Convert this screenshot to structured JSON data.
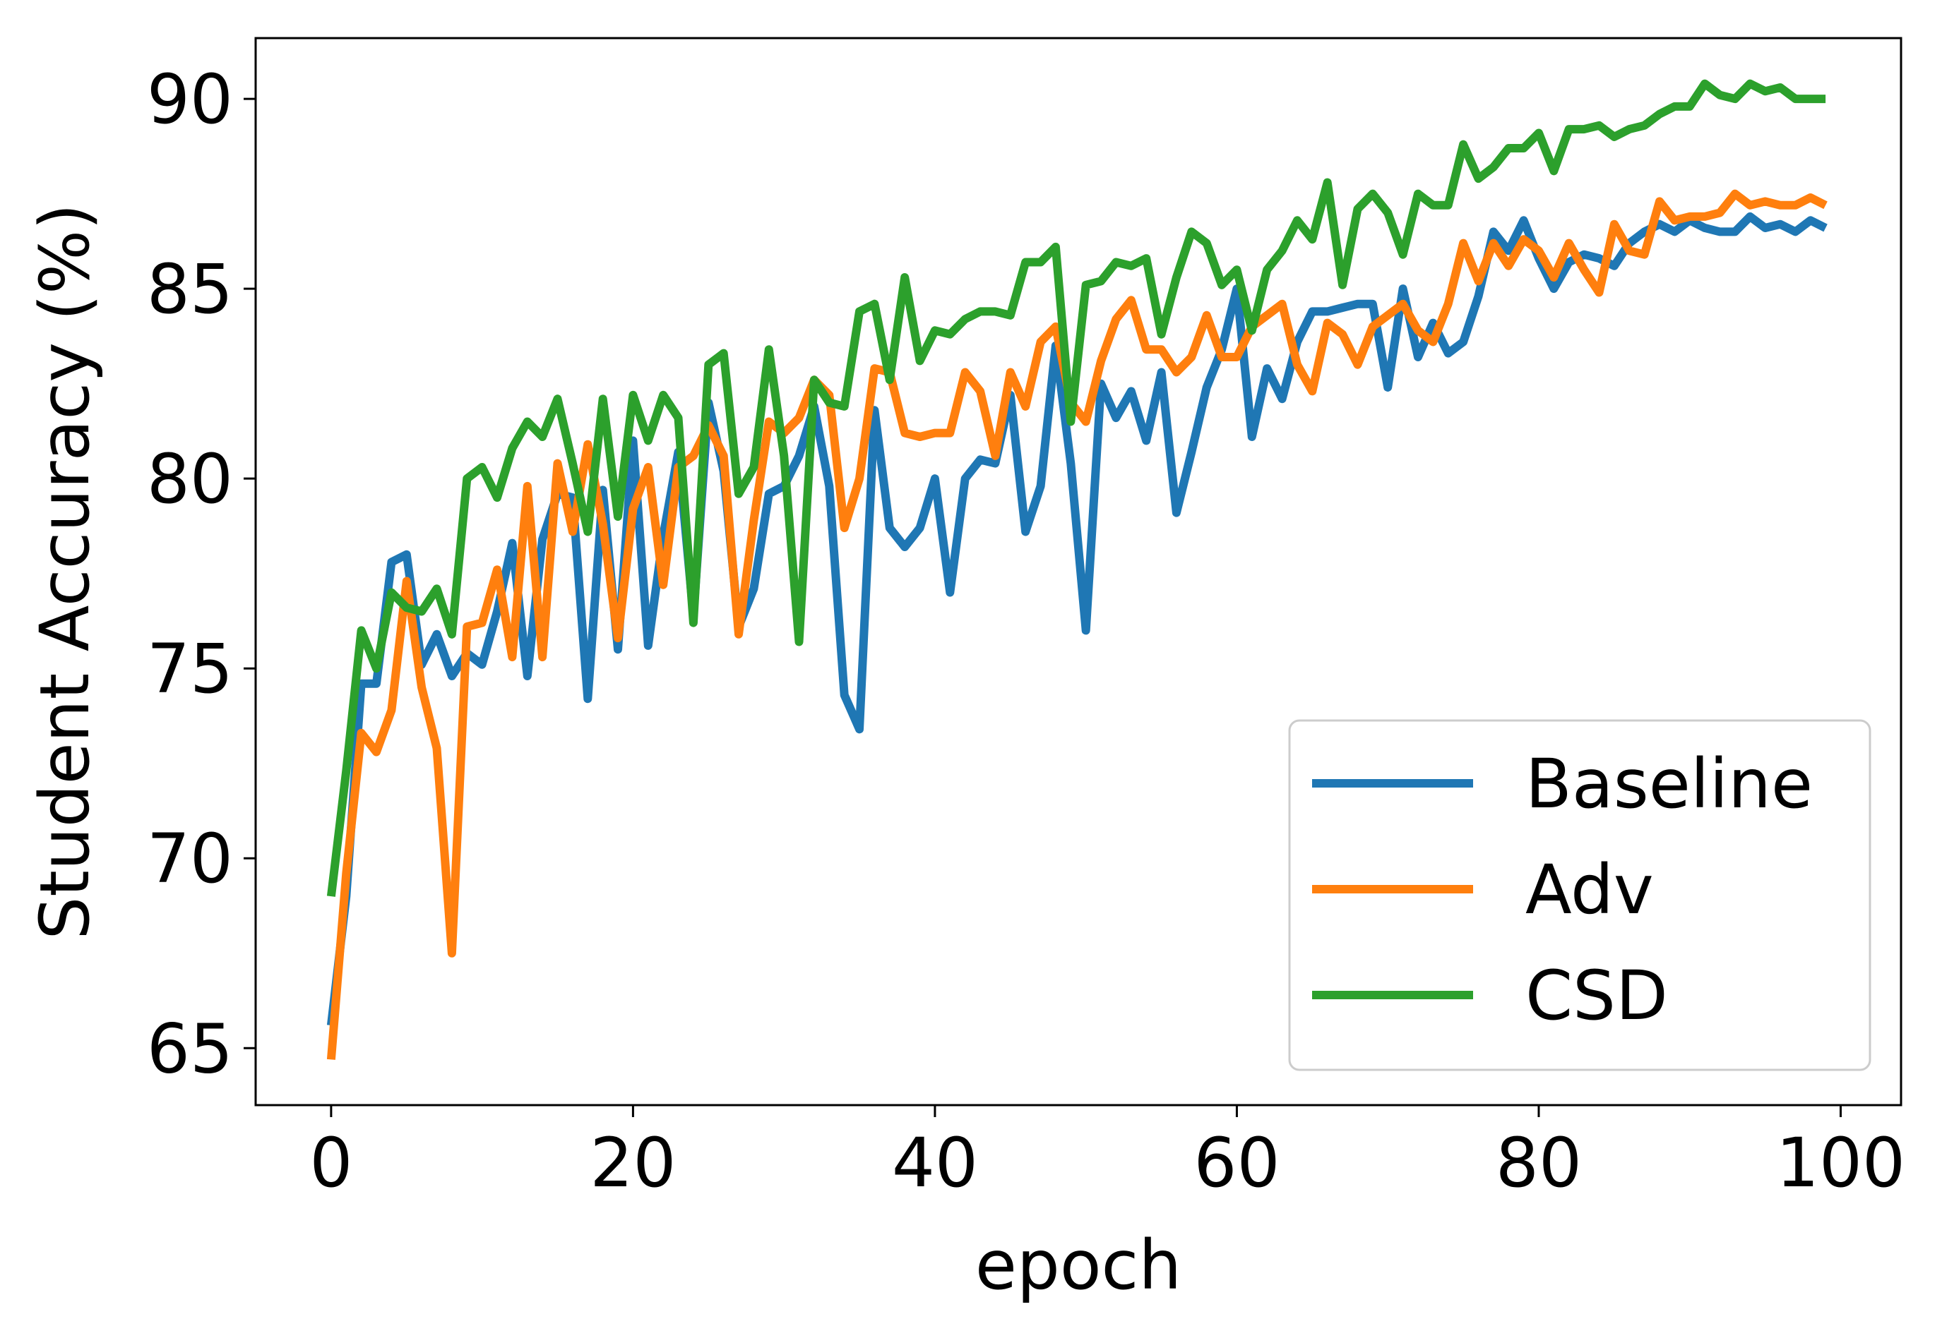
{
  "chart_data": {
    "type": "line",
    "title": "",
    "xlabel": "epoch",
    "ylabel": "Student Accuracy (%)",
    "xlim": [
      -5,
      104
    ],
    "ylim": [
      63.5,
      91.6
    ],
    "x_ticks": [
      0,
      20,
      40,
      60,
      80,
      100
    ],
    "y_ticks": [
      65,
      70,
      75,
      80,
      85,
      90
    ],
    "grid": false,
    "legend_position": "lower-right",
    "series": [
      {
        "name": "Baseline",
        "color": "#1f77b4",
        "values": [
          65.6,
          69.0,
          74.6,
          74.6,
          77.8,
          78.0,
          75.1,
          75.9,
          74.8,
          75.4,
          75.1,
          76.5,
          78.3,
          74.8,
          78.4,
          79.6,
          79.5,
          74.2,
          79.7,
          75.5,
          81.0,
          75.6,
          78.5,
          80.7,
          76.4,
          82.0,
          80.2,
          76.1,
          77.1,
          79.6,
          79.8,
          80.6,
          81.9,
          79.8,
          74.3,
          73.4,
          81.8,
          78.7,
          78.2,
          78.7,
          80.0,
          77.0,
          80.0,
          80.5,
          80.4,
          82.2,
          78.6,
          79.8,
          83.5,
          80.4,
          76.0,
          82.5,
          81.6,
          82.3,
          81.0,
          82.8,
          79.1,
          80.7,
          82.4,
          83.4,
          85.0,
          81.1,
          82.9,
          82.1,
          83.6,
          84.4,
          84.4,
          84.5,
          84.6,
          84.6,
          82.4,
          85.0,
          83.2,
          84.1,
          83.3,
          83.6,
          84.8,
          86.5,
          86.0,
          86.8,
          85.8,
          85.0,
          85.7,
          85.9,
          85.8,
          85.6,
          86.2,
          86.5,
          86.7,
          86.5,
          86.8,
          86.6,
          86.5,
          86.5,
          86.9,
          86.6,
          86.7,
          86.5,
          86.8,
          86.6
        ],
        "x": [
          0,
          1,
          2,
          3,
          4,
          5,
          6,
          7,
          8,
          9,
          10,
          11,
          12,
          13,
          14,
          15,
          16,
          17,
          18,
          19,
          20,
          21,
          22,
          23,
          24,
          25,
          26,
          27,
          28,
          29,
          30,
          31,
          32,
          33,
          34,
          35,
          36,
          37,
          38,
          39,
          40,
          41,
          42,
          43,
          44,
          45,
          46,
          47,
          48,
          49,
          50,
          51,
          52,
          53,
          54,
          55,
          56,
          57,
          58,
          59,
          60,
          61,
          62,
          63,
          64,
          65,
          66,
          67,
          68,
          69,
          70,
          71,
          72,
          73,
          74,
          75,
          76,
          77,
          78,
          79,
          80,
          81,
          82,
          83,
          84,
          85,
          86,
          87,
          88,
          89,
          90,
          91,
          92,
          93,
          94,
          95,
          96,
          97,
          98,
          99
        ]
      },
      {
        "name": "Adv",
        "color": "#ff7f0e",
        "values": [
          64.7,
          69.6,
          73.3,
          72.8,
          73.9,
          77.3,
          74.5,
          72.9,
          67.5,
          76.1,
          76.2,
          77.6,
          75.3,
          79.8,
          75.3,
          80.4,
          78.6,
          80.9,
          78.8,
          75.8,
          79.2,
          80.3,
          77.2,
          80.3,
          80.6,
          81.4,
          80.6,
          75.9,
          78.9,
          81.5,
          81.2,
          81.6,
          82.6,
          82.2,
          78.7,
          80.0,
          82.9,
          82.8,
          81.2,
          81.1,
          81.2,
          81.2,
          82.8,
          82.3,
          80.6,
          82.8,
          81.9,
          83.6,
          84.0,
          82.0,
          81.5,
          83.1,
          84.2,
          84.7,
          83.4,
          83.4,
          82.8,
          83.2,
          84.3,
          83.2,
          83.2,
          84.0,
          84.3,
          84.6,
          83.0,
          82.3,
          84.1,
          83.8,
          83.0,
          84.0,
          84.3,
          84.6,
          83.9,
          83.6,
          84.6,
          86.2,
          85.2,
          86.2,
          85.6,
          86.3,
          86.0,
          85.3,
          86.2,
          85.5,
          84.9,
          86.7,
          86.0,
          85.9,
          87.3,
          86.8,
          86.9,
          86.9,
          87.0,
          87.5,
          87.2,
          87.3,
          87.2,
          87.2,
          87.4,
          87.2
        ],
        "x": [
          0,
          1,
          2,
          3,
          4,
          5,
          6,
          7,
          8,
          9,
          10,
          11,
          12,
          13,
          14,
          15,
          16,
          17,
          18,
          19,
          20,
          21,
          22,
          23,
          24,
          25,
          26,
          27,
          28,
          29,
          30,
          31,
          32,
          33,
          34,
          35,
          36,
          37,
          38,
          39,
          40,
          41,
          42,
          43,
          44,
          45,
          46,
          47,
          48,
          49,
          50,
          51,
          52,
          53,
          54,
          55,
          56,
          57,
          58,
          59,
          60,
          61,
          62,
          63,
          64,
          65,
          66,
          67,
          68,
          69,
          70,
          71,
          72,
          73,
          74,
          75,
          76,
          77,
          78,
          79,
          80,
          81,
          82,
          83,
          84,
          85,
          86,
          87,
          88,
          89,
          90,
          91,
          92,
          93,
          94,
          95,
          96,
          97,
          98,
          99
        ]
      },
      {
        "name": "CSD",
        "color": "#2ca02c",
        "values": [
          69.0,
          72.3,
          76.0,
          75.0,
          77.0,
          76.6,
          76.5,
          77.1,
          75.9,
          80.0,
          80.3,
          79.5,
          80.8,
          81.5,
          81.1,
          82.1,
          80.4,
          78.6,
          82.1,
          79.0,
          82.2,
          81.0,
          82.2,
          81.6,
          76.2,
          83.0,
          83.3,
          79.6,
          80.3,
          83.4,
          80.6,
          75.7,
          82.6,
          82.0,
          81.9,
          84.4,
          84.6,
          82.6,
          85.3,
          83.1,
          83.9,
          83.8,
          84.2,
          84.4,
          84.4,
          84.3,
          85.7,
          85.7,
          86.1,
          81.5,
          85.1,
          85.2,
          85.7,
          85.6,
          85.8,
          83.8,
          85.3,
          86.5,
          86.2,
          85.1,
          85.5,
          83.9,
          85.5,
          86.0,
          86.8,
          86.3,
          87.8,
          85.1,
          87.1,
          87.5,
          87.0,
          85.9,
          87.5,
          87.2,
          87.2,
          88.8,
          87.9,
          88.2,
          88.7,
          88.7,
          89.1,
          88.1,
          89.2,
          89.2,
          89.3,
          89.0,
          89.2,
          89.3,
          89.6,
          89.8,
          89.8,
          90.4,
          90.1,
          90.0,
          90.4,
          90.2,
          90.3,
          90.0,
          90.0,
          90.0
        ],
        "x": [
          0,
          1,
          2,
          3,
          4,
          5,
          6,
          7,
          8,
          9,
          10,
          11,
          12,
          13,
          14,
          15,
          16,
          17,
          18,
          19,
          20,
          21,
          22,
          23,
          24,
          25,
          26,
          27,
          28,
          29,
          30,
          31,
          32,
          33,
          34,
          35,
          36,
          37,
          38,
          39,
          40,
          41,
          42,
          43,
          44,
          45,
          46,
          47,
          48,
          49,
          50,
          51,
          52,
          53,
          54,
          55,
          56,
          57,
          58,
          59,
          60,
          61,
          62,
          63,
          64,
          65,
          66,
          67,
          68,
          69,
          70,
          71,
          72,
          73,
          74,
          75,
          76,
          77,
          78,
          79,
          80,
          81,
          82,
          83,
          84,
          85,
          86,
          87,
          88,
          89,
          90,
          91,
          92,
          93,
          94,
          95,
          96,
          97,
          98,
          99
        ]
      }
    ]
  }
}
